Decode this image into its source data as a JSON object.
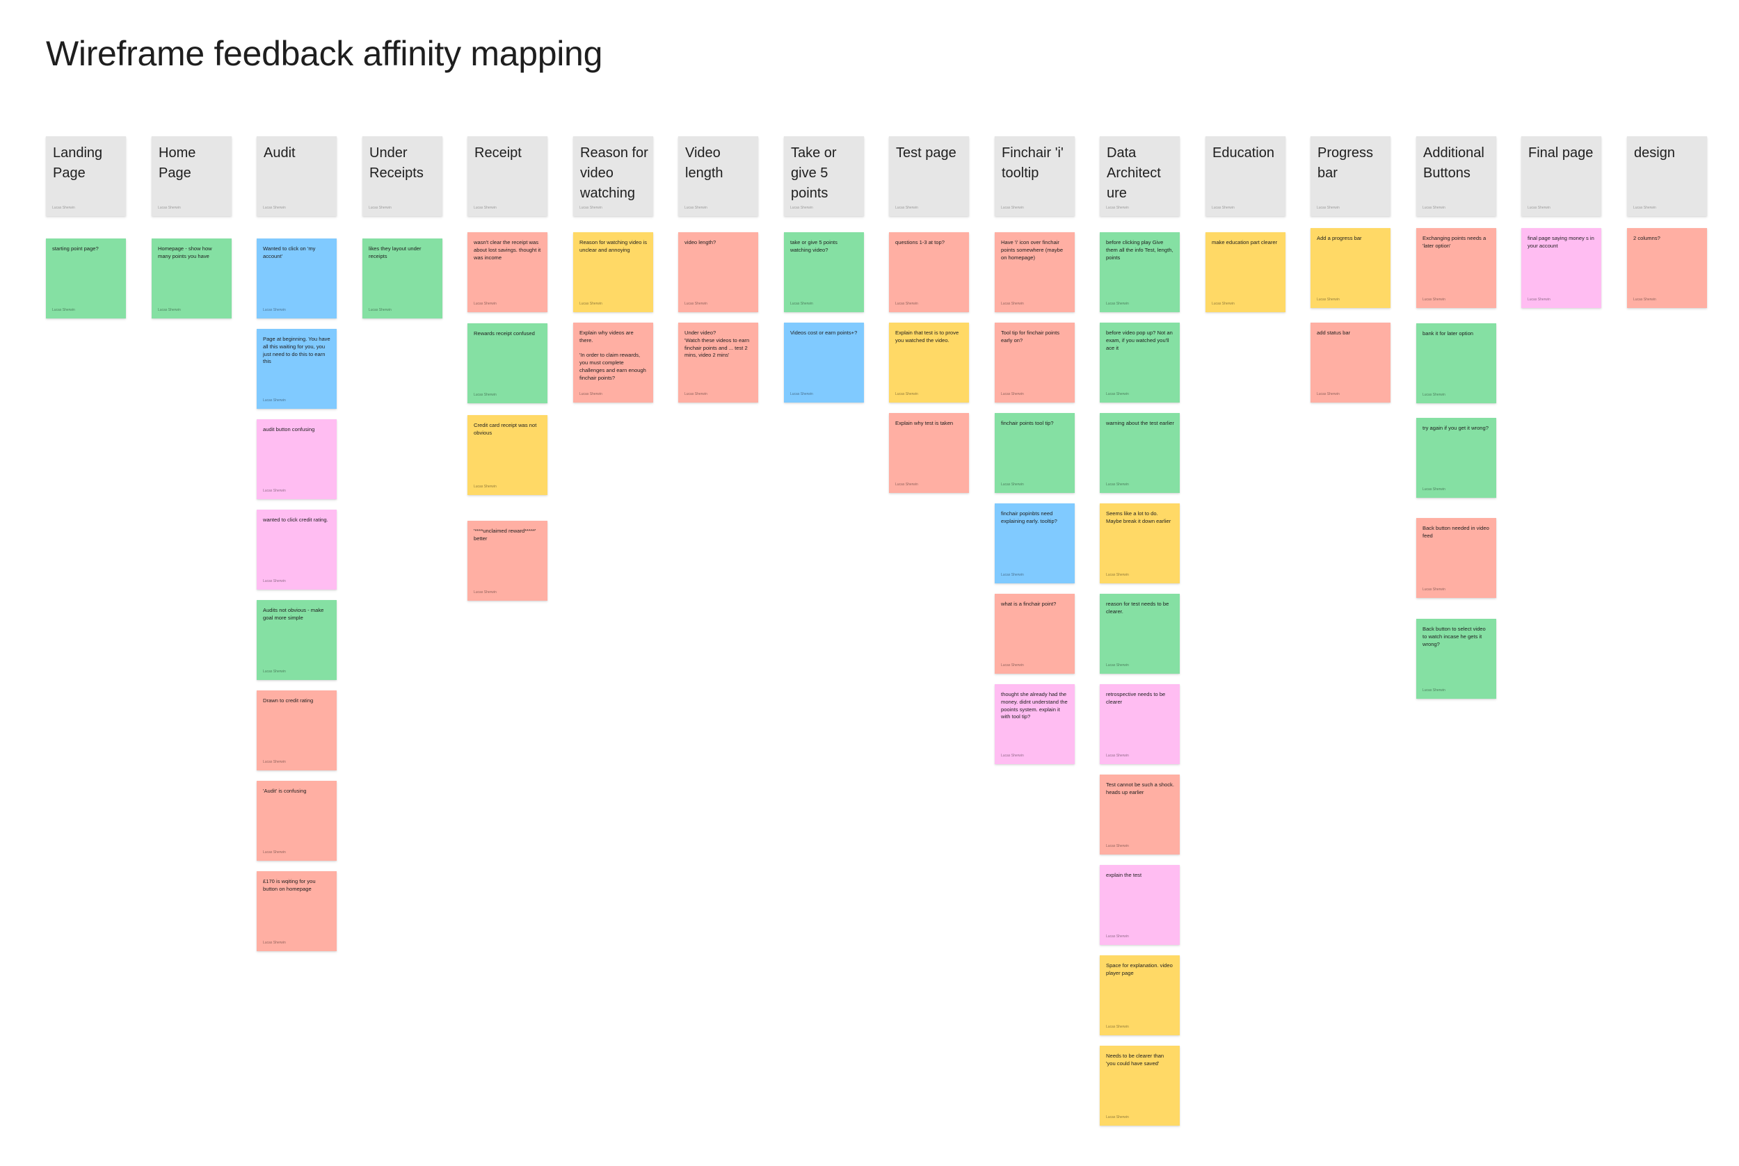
{
  "title": "Wireframe feedback affinity mapping",
  "colors": {
    "grey": "#e6e6e6",
    "green": "#85e0a3",
    "blue": "#80caff",
    "pink": "#ffbdf2",
    "red": "#ffafa3",
    "yellow": "#ffd966"
  },
  "author": "Lucas Sherwin",
  "columns": [
    {
      "header": "Landing Page",
      "notes": [
        {
          "text": "starting point page?",
          "color": "green"
        }
      ]
    },
    {
      "header": "Home Page",
      "notes": [
        {
          "text": "Homepage - show how many points you have",
          "color": "green"
        }
      ]
    },
    {
      "header": "Audit",
      "notes": [
        {
          "text": "Wanted to click on 'my account'",
          "color": "blue"
        },
        {
          "text": "Page at beginning. You have all this waiting for you, you just need to do this to earn this",
          "color": "blue"
        },
        {
          "text": "audit button confusing",
          "color": "pink"
        },
        {
          "text": "wanted to click credit rating.",
          "color": "pink"
        },
        {
          "text": "Audits not obvious - make goal more simple",
          "color": "green"
        },
        {
          "text": "Drawn to credit rating",
          "color": "red"
        },
        {
          "text": "'Audit' is confusing",
          "color": "red"
        },
        {
          "text": "£170 is wqiting for you button on homepage",
          "color": "red"
        }
      ]
    },
    {
      "header": "Under Receipts",
      "notes": [
        {
          "text": "likes they layout under receipts",
          "color": "green"
        }
      ]
    },
    {
      "header": "Receipt",
      "notes": [
        {
          "text": "wasn't clear the receipt was about lost savings. thought it was income",
          "color": "red"
        },
        {
          "text": "Rewards receipt confused",
          "color": "green"
        },
        {
          "text": "Credit card receipt was not obvious",
          "color": "yellow"
        },
        {
          "text": "'****unclaimed reward*****' better",
          "color": "red"
        }
      ]
    },
    {
      "header": "Reason for video watching",
      "notes": [
        {
          "text": "Reason for watching video is unclear and annoying",
          "color": "yellow"
        },
        {
          "text": "Explain why videos are there.\n\n'In order to claim rewards, you must complete challenges and earn enough finchair points?",
          "color": "red"
        }
      ]
    },
    {
      "header": "Video length",
      "notes": [
        {
          "text": "video length?",
          "color": "red"
        },
        {
          "text": "Under video?\n'Watch these videos to earn finchair points and ... test 2 mins, video 2 mins'",
          "color": "red"
        }
      ]
    },
    {
      "header": "Take or give 5 points",
      "notes": [
        {
          "text": "take or give 5 points watching video?",
          "color": "green"
        },
        {
          "text": "Videos cost or earn points+?",
          "color": "blue"
        }
      ]
    },
    {
      "header": "Test page",
      "notes": [
        {
          "text": "questions 1-3 at top?",
          "color": "red"
        },
        {
          "text": "Explain that test is to prove you watched the video.",
          "color": "yellow"
        },
        {
          "text": "Explain why test is taken",
          "color": "red"
        }
      ]
    },
    {
      "header": "Finchair 'i' tooltip",
      "notes": [
        {
          "text": "Have 'i' icon over finchair points somewhere (maybe on homepage)",
          "color": "red"
        },
        {
          "text": "Tool tip for finchair points early on?",
          "color": "red"
        },
        {
          "text": "finchair points tool tip?",
          "color": "green"
        },
        {
          "text": "finchair popinbts need explaining early. tooltip?",
          "color": "blue"
        },
        {
          "text": "what is a finchair point?",
          "color": "red"
        },
        {
          "text": "thought she already had the money. didnt understand the pooints system. explain it with tool tip?",
          "color": "pink"
        }
      ]
    },
    {
      "header": "Data Architect ure",
      "notes": [
        {
          "text": "before clicking play Give them all the info Test, length, points",
          "color": "green"
        },
        {
          "text": "before video pop up? Not an exam, if you watched you'll ace it",
          "color": "green"
        },
        {
          "text": "warning about the test earlier",
          "color": "green"
        },
        {
          "text": "Seems like a lot to do. Maybe break it down earlier",
          "color": "yellow"
        },
        {
          "text": "reason for test needs to be clearer.",
          "color": "green"
        },
        {
          "text": "retrospective needs to be clearer",
          "color": "pink"
        },
        {
          "text": "Test cannot be such a shock. heads up earlier",
          "color": "red"
        },
        {
          "text": "explain the test",
          "color": "pink"
        },
        {
          "text": "Space for explanation. video player page",
          "color": "yellow"
        },
        {
          "text": "Needs to be clearer than 'you could have saved'",
          "color": "yellow"
        }
      ]
    },
    {
      "header": "Education",
      "notes": [
        {
          "text": "make education part clearer",
          "color": "yellow"
        }
      ]
    },
    {
      "header": "Progress bar",
      "notes": [
        {
          "text": "Add a progress bar",
          "color": "yellow"
        },
        {
          "text": "add status bar",
          "color": "red"
        }
      ]
    },
    {
      "header": "Additional Buttons",
      "notes": [
        {
          "text": "Exchanging points needs a 'later option'",
          "color": "red"
        },
        {
          "text": "bank it for later option",
          "color": "green"
        },
        {
          "text": "try again if you get it wrong?",
          "color": "green"
        },
        {
          "text": "Back button needed in video feed",
          "color": "red"
        },
        {
          "text": "Back button to select video to watch incase he gets it wrong?",
          "color": "green"
        }
      ]
    },
    {
      "header": "Final page",
      "notes": [
        {
          "text": "final page saying money s in your account",
          "color": "pink"
        }
      ]
    },
    {
      "header": "design",
      "notes": [
        {
          "text": "2 columns?",
          "color": "red"
        }
      ]
    }
  ]
}
